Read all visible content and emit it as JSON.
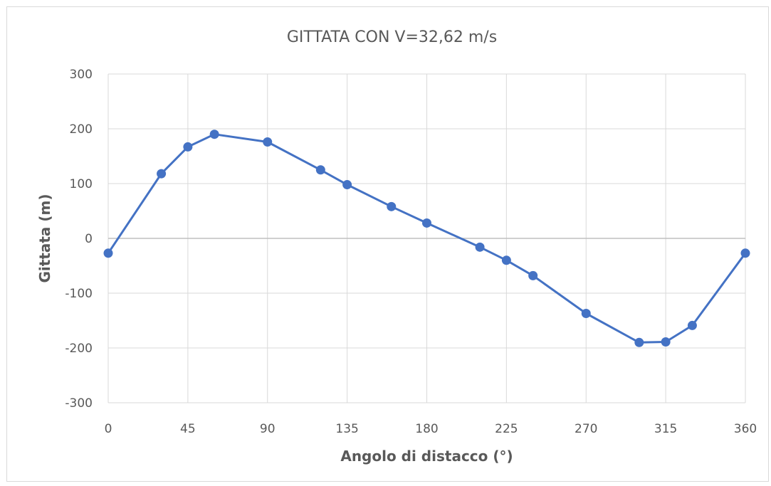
{
  "chart_data": {
    "type": "line",
    "title": "GITTATA CON V=32,62 m/s",
    "xlabel": "Angolo di distacco (°)",
    "ylabel": "Gittata (m)",
    "xlim": [
      0,
      360
    ],
    "ylim": [
      -300,
      300
    ],
    "xticks": [
      0,
      45,
      90,
      135,
      180,
      225,
      270,
      315,
      360
    ],
    "yticks": [
      -300,
      -200,
      -100,
      0,
      100,
      200,
      300
    ],
    "grid": true,
    "legend": "none",
    "series": [
      {
        "color": "#4472c4",
        "x": [
          0,
          30,
          45,
          60,
          90,
          120,
          135,
          160,
          180,
          210,
          225,
          240,
          270,
          300,
          315,
          330,
          360
        ],
        "y": [
          -27,
          118,
          167,
          190,
          176,
          125,
          98,
          58,
          28,
          -16,
          -40,
          -68,
          -137,
          -190,
          -189,
          -159,
          -27
        ]
      }
    ]
  }
}
